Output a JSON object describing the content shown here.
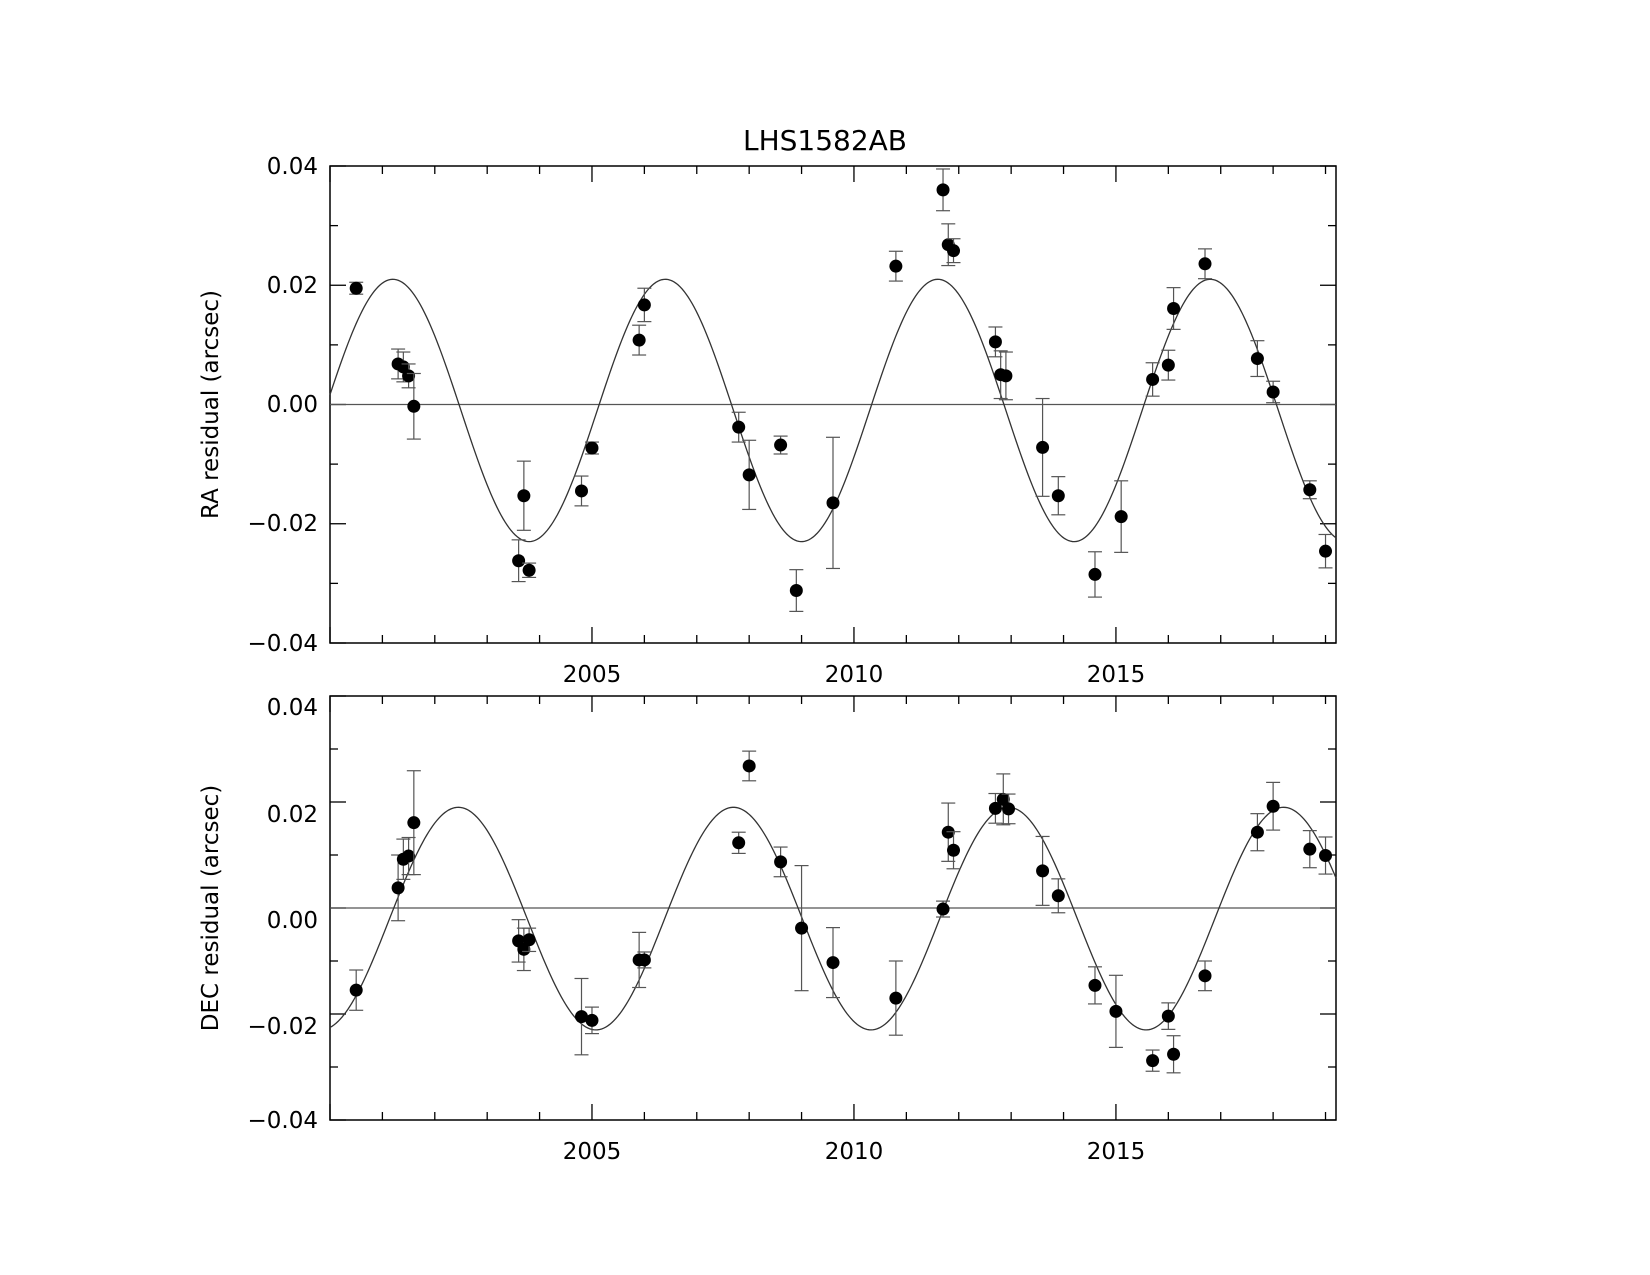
{
  "chart_data": [
    {
      "type": "scatter",
      "title": "LHS1582AB",
      "xlabel": "",
      "ylabel": "RA residual (arcsec)",
      "xlim": [
        2000.0,
        2019.2
      ],
      "ylim": [
        -0.04,
        0.04
      ],
      "xticks": [
        2005,
        2010,
        2015
      ],
      "xtick_labels": [
        "2005",
        "2010",
        "2015"
      ],
      "yticks": [
        0.04,
        0.02,
        0.0,
        -0.02,
        -0.04
      ],
      "ytick_labels": [
        "0.04",
        "0.02",
        "0.00",
        "−0.02",
        "−0.04"
      ],
      "grid": false,
      "zero_line": true,
      "model_curve": {
        "amplitude": 0.022,
        "offset": -0.001,
        "period_years": 5.2,
        "peak_year": 2001.2
      },
      "series": [
        {
          "points": [
            {
              "x": 2000.5,
              "y": 0.0195,
              "err": 0.001
            },
            {
              "x": 2001.3,
              "y": 0.0068,
              "err": 0.0025
            },
            {
              "x": 2001.4,
              "y": 0.0063,
              "err": 0.0025
            },
            {
              "x": 2001.5,
              "y": 0.0048,
              "err": 0.002
            },
            {
              "x": 2001.6,
              "y": -0.0003,
              "err": 0.0055
            },
            {
              "x": 2003.6,
              "y": -0.0262,
              "err": 0.0035
            },
            {
              "x": 2003.7,
              "y": -0.0153,
              "err": 0.0058
            },
            {
              "x": 2003.8,
              "y": -0.0278,
              "err": 0.0012
            },
            {
              "x": 2004.8,
              "y": -0.0145,
              "err": 0.0025
            },
            {
              "x": 2005.0,
              "y": -0.0073,
              "err": 0.001
            },
            {
              "x": 2005.9,
              "y": 0.0108,
              "err": 0.0025
            },
            {
              "x": 2006.0,
              "y": 0.0167,
              "err": 0.0028
            },
            {
              "x": 2007.8,
              "y": -0.0038,
              "err": 0.0025
            },
            {
              "x": 2008.0,
              "y": -0.0118,
              "err": 0.0058
            },
            {
              "x": 2008.6,
              "y": -0.0068,
              "err": 0.0015
            },
            {
              "x": 2008.9,
              "y": -0.0312,
              "err": 0.0035
            },
            {
              "x": 2009.6,
              "y": -0.0165,
              "err": 0.011
            },
            {
              "x": 2010.8,
              "y": 0.0232,
              "err": 0.0025
            },
            {
              "x": 2011.7,
              "y": 0.036,
              "err": 0.0035
            },
            {
              "x": 2011.8,
              "y": 0.0268,
              "err": 0.0035
            },
            {
              "x": 2011.9,
              "y": 0.0258,
              "err": 0.002
            },
            {
              "x": 2012.7,
              "y": 0.0105,
              "err": 0.0025
            },
            {
              "x": 2012.8,
              "y": 0.005,
              "err": 0.004
            },
            {
              "x": 2012.9,
              "y": 0.0048,
              "err": 0.004
            },
            {
              "x": 2013.6,
              "y": -0.0072,
              "err": 0.0082
            },
            {
              "x": 2013.9,
              "y": -0.0153,
              "err": 0.0032
            },
            {
              "x": 2014.6,
              "y": -0.0285,
              "err": 0.0038
            },
            {
              "x": 2015.1,
              "y": -0.0188,
              "err": 0.006
            },
            {
              "x": 2015.7,
              "y": 0.0042,
              "err": 0.0028
            },
            {
              "x": 2016.0,
              "y": 0.0066,
              "err": 0.0025
            },
            {
              "x": 2016.1,
              "y": 0.0161,
              "err": 0.0035
            },
            {
              "x": 2016.7,
              "y": 0.0236,
              "err": 0.0025
            },
            {
              "x": 2017.7,
              "y": 0.0077,
              "err": 0.003
            },
            {
              "x": 2018.0,
              "y": 0.0021,
              "err": 0.0018
            },
            {
              "x": 2018.7,
              "y": -0.0143,
              "err": 0.0015
            },
            {
              "x": 2019.0,
              "y": -0.0246,
              "err": 0.0028
            }
          ]
        }
      ]
    },
    {
      "type": "scatter",
      "title": "",
      "xlabel": "",
      "ylabel": "DEC residual (arcsec)",
      "xlim": [
        2000.0,
        2019.2
      ],
      "ylim": [
        -0.04,
        0.04
      ],
      "xticks": [
        2005,
        2010,
        2015
      ],
      "xtick_labels": [
        "2005",
        "2010",
        "2015"
      ],
      "yticks": [
        0.04,
        0.02,
        0.0,
        -0.02,
        -0.04
      ],
      "ytick_labels": [
        "0.04",
        "0.02",
        "0.00",
        "−0.02",
        "−0.04"
      ],
      "grid": false,
      "zero_line": true,
      "model_curve": {
        "amplitude": 0.021,
        "offset": -0.002,
        "period_years": 5.25,
        "peak_year": 2002.45
      },
      "series": [
        {
          "points": [
            {
              "x": 2000.5,
              "y": -0.0155,
              "err": 0.0038
            },
            {
              "x": 2001.3,
              "y": 0.0038,
              "err": 0.0062
            },
            {
              "x": 2001.4,
              "y": 0.0092,
              "err": 0.0038
            },
            {
              "x": 2001.5,
              "y": 0.0098,
              "err": 0.0035
            },
            {
              "x": 2001.6,
              "y": 0.0161,
              "err": 0.0098
            },
            {
              "x": 2003.6,
              "y": -0.0062,
              "err": 0.004
            },
            {
              "x": 2003.7,
              "y": -0.0078,
              "err": 0.004
            },
            {
              "x": 2003.8,
              "y": -0.006,
              "err": 0.0022
            },
            {
              "x": 2004.8,
              "y": -0.0205,
              "err": 0.0072
            },
            {
              "x": 2005.0,
              "y": -0.0212,
              "err": 0.0025
            },
            {
              "x": 2005.9,
              "y": -0.0098,
              "err": 0.0052
            },
            {
              "x": 2006.0,
              "y": -0.0098,
              "err": 0.0015
            },
            {
              "x": 2007.8,
              "y": 0.0123,
              "err": 0.002
            },
            {
              "x": 2008.0,
              "y": 0.0268,
              "err": 0.0028
            },
            {
              "x": 2008.6,
              "y": 0.0087,
              "err": 0.0028
            },
            {
              "x": 2009.0,
              "y": -0.0038,
              "err": 0.0118
            },
            {
              "x": 2009.6,
              "y": -0.0103,
              "err": 0.0066
            },
            {
              "x": 2010.8,
              "y": -0.017,
              "err": 0.007
            },
            {
              "x": 2011.7,
              "y": -0.0002,
              "err": 0.0015
            },
            {
              "x": 2011.8,
              "y": 0.0143,
              "err": 0.0055
            },
            {
              "x": 2011.9,
              "y": 0.0109,
              "err": 0.0035
            },
            {
              "x": 2012.7,
              "y": 0.0188,
              "err": 0.0028
            },
            {
              "x": 2012.85,
              "y": 0.0205,
              "err": 0.0048
            },
            {
              "x": 2012.95,
              "y": 0.0187,
              "err": 0.0028
            },
            {
              "x": 2013.6,
              "y": 0.007,
              "err": 0.0065
            },
            {
              "x": 2013.9,
              "y": 0.0023,
              "err": 0.0032
            },
            {
              "x": 2014.6,
              "y": -0.0146,
              "err": 0.0035
            },
            {
              "x": 2015.0,
              "y": -0.0195,
              "err": 0.0068
            },
            {
              "x": 2015.7,
              "y": -0.0288,
              "err": 0.002
            },
            {
              "x": 2016.0,
              "y": -0.0204,
              "err": 0.0025
            },
            {
              "x": 2016.1,
              "y": -0.0276,
              "err": 0.0035
            },
            {
              "x": 2016.7,
              "y": -0.0128,
              "err": 0.0028
            },
            {
              "x": 2017.7,
              "y": 0.0143,
              "err": 0.0035
            },
            {
              "x": 2018.0,
              "y": 0.0192,
              "err": 0.0045
            },
            {
              "x": 2018.7,
              "y": 0.0111,
              "err": 0.0035
            },
            {
              "x": 2019.0,
              "y": 0.0099,
              "err": 0.0035
            }
          ]
        }
      ]
    }
  ]
}
